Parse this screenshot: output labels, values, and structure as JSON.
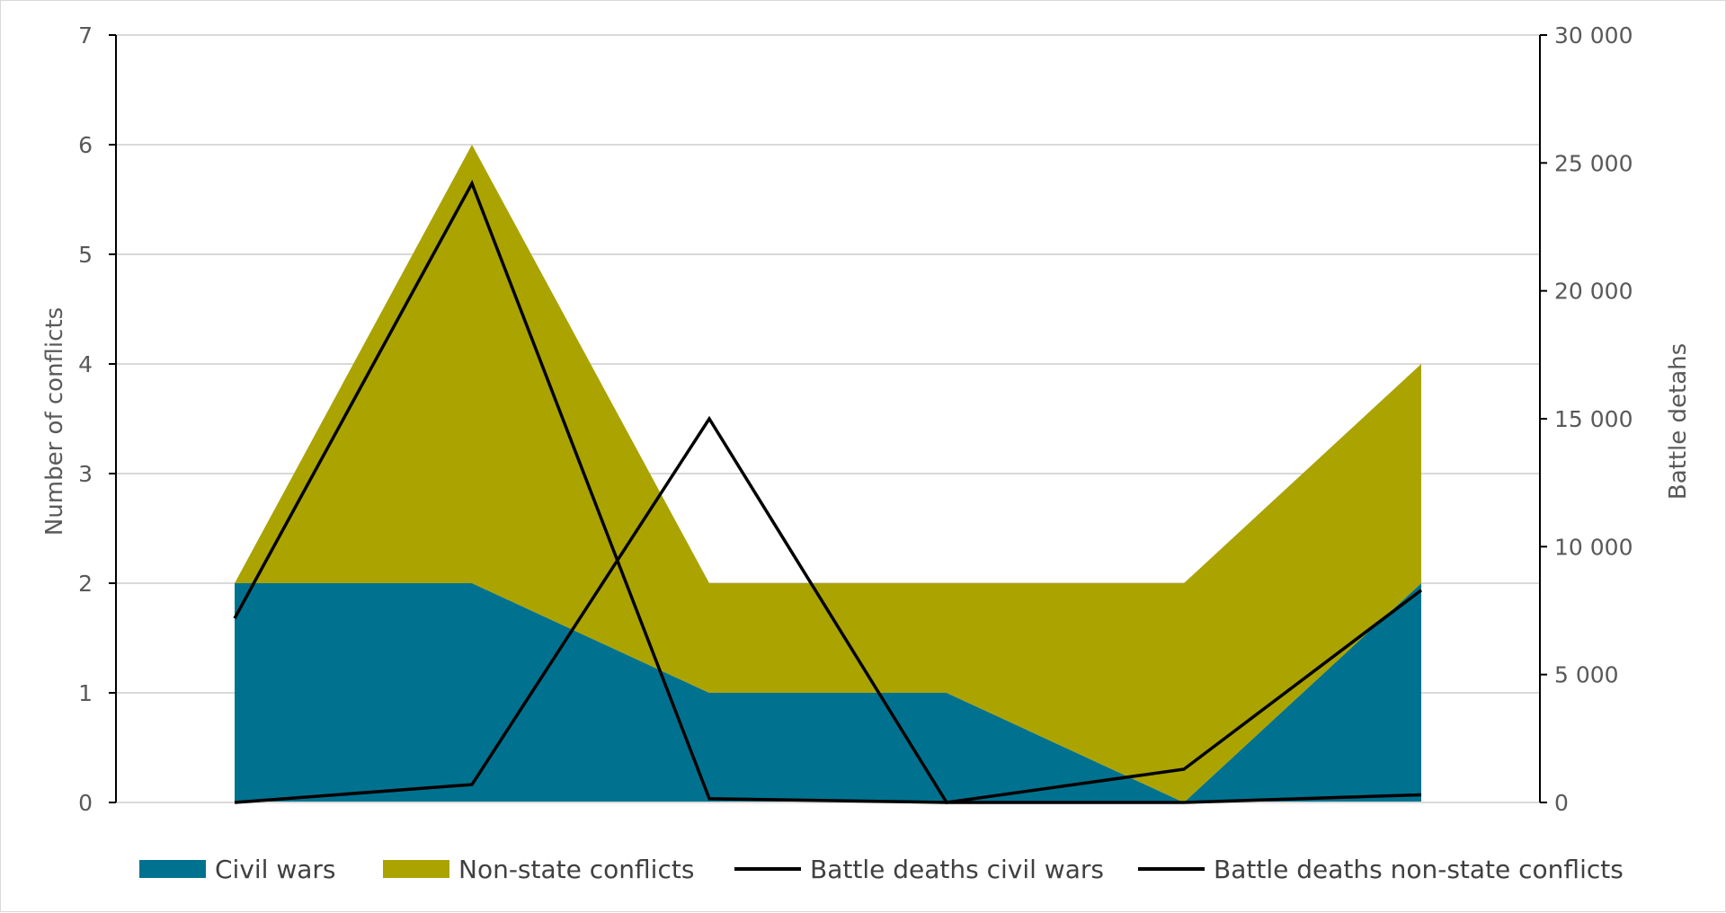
{
  "chart_data": {
    "type": "area",
    "title": "",
    "x": [
      "",
      "",
      "",
      "",
      "",
      ""
    ],
    "y_left": {
      "label": "Number of conflicts",
      "range": [
        0,
        7
      ],
      "ticks": [
        "0",
        "1",
        "2",
        "3",
        "4",
        "5",
        "6",
        "7"
      ]
    },
    "y_right": {
      "label": "Battle detahs",
      "range": [
        0,
        30000
      ],
      "ticks": [
        "0",
        "5 000",
        "10 000",
        "15 000",
        "20 000",
        "25 000",
        "30 000"
      ]
    },
    "grid": true,
    "legend_position": "bottom",
    "series": [
      {
        "name": "Civil wars",
        "kind": "stacked-area",
        "axis": "left",
        "color": "#00728F",
        "values": [
          2,
          2,
          1,
          1,
          0,
          2
        ]
      },
      {
        "name": "Non-state conflicts",
        "kind": "stacked-area",
        "axis": "left",
        "color": "#ABA300",
        "values": [
          0,
          4,
          1,
          1,
          2,
          2
        ]
      },
      {
        "name": "Battle deaths civil wars",
        "kind": "line",
        "axis": "right",
        "color": "#000000",
        "values": [
          0,
          700,
          15000,
          0,
          1300,
          8300
        ]
      },
      {
        "name": "Battle deaths non-state conflicts",
        "kind": "line",
        "axis": "right",
        "color": "#000000",
        "values": [
          7200,
          24200,
          150,
          0,
          0,
          300
        ]
      }
    ]
  }
}
